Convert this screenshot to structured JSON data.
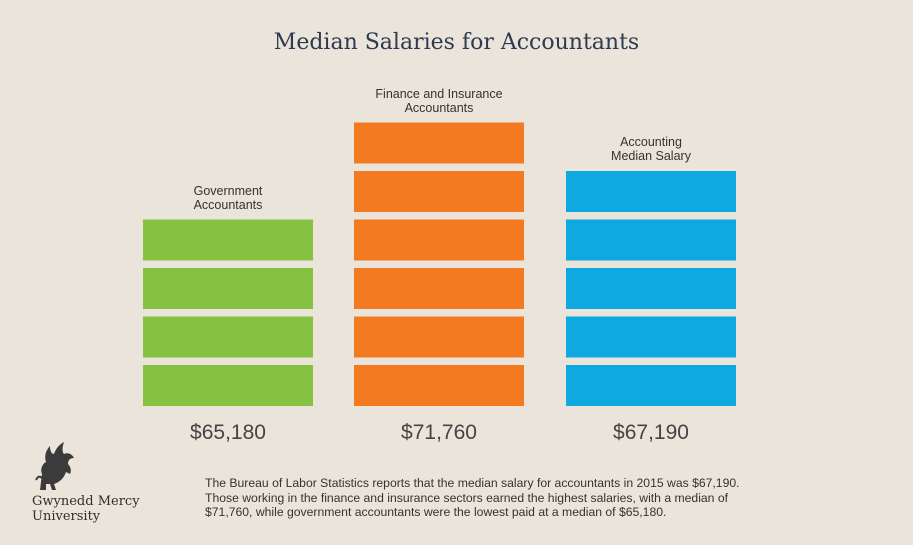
{
  "title": "Median Salaries for Accountants",
  "chart_data": {
    "type": "bar",
    "title": "Median Salaries for Accountants",
    "categories": [
      "Government\nAccountants",
      "Finance and Insurance\nAccountants",
      "Accounting\nMedian Salary"
    ],
    "values": [
      65180,
      71760,
      67190
    ],
    "value_labels": [
      "$65,180",
      "$71,760",
      "$67,190"
    ],
    "segments": [
      4,
      6,
      5
    ],
    "colors": [
      "#86c241",
      "#f47a22",
      "#0ea9e0"
    ],
    "grid": false,
    "legend": "none"
  },
  "logo": {
    "icon": "griffin-icon",
    "line1": "Gwynedd Mercy",
    "line2": "University"
  },
  "footnote": {
    "line1": "The Bureau of Labor Statistics reports that the median salary for accountants in 2015 was $67,190.",
    "line2": "Those working in the finance and insurance sectors earned the highest salaries, with a median of",
    "line3": "$71,760, while government accountants were the lowest paid at a median of $65,180."
  }
}
